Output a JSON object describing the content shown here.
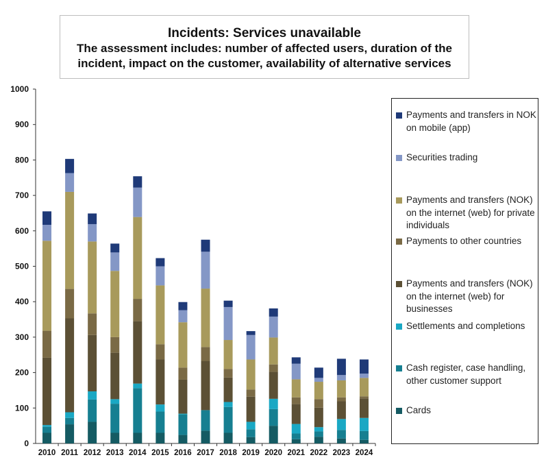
{
  "chart_data": {
    "type": "bar",
    "stacked": true,
    "title": "Incidents: Services unavailable",
    "subtitle": "The assessment includes: number of affected users, duration of the incident, impact on the customer, availability of alternative services",
    "xlabel": "",
    "ylabel": "",
    "ylim": [
      0,
      1000
    ],
    "yticks": [
      0,
      100,
      200,
      300,
      400,
      500,
      600,
      700,
      800,
      900,
      1000
    ],
    "grid": false,
    "legend": "right",
    "categories": [
      "2010",
      "2011",
      "2012",
      "2013",
      "2014",
      "2015",
      "2016",
      "2017",
      "2018",
      "2019",
      "2020",
      "2021",
      "2022",
      "2023",
      "2024"
    ],
    "series": [
      {
        "name": "Cards",
        "color": "#155b63",
        "values": [
          30,
          54,
          61,
          30,
          30,
          30,
          24,
          36,
          30,
          18,
          50,
          12,
          19,
          14,
          10
        ]
      },
      {
        "name": "Cash register, case handling, other customer support",
        "color": "#167f91",
        "values": [
          17,
          18,
          63,
          82,
          126,
          60,
          58,
          58,
          73,
          22,
          47,
          16,
          15,
          24,
          25
        ]
      },
      {
        "name": "Settlements and completions",
        "color": "#1aa8c4",
        "values": [
          5,
          16,
          23,
          13,
          13,
          20,
          2,
          0,
          14,
          21,
          29,
          27,
          12,
          31,
          37
        ]
      },
      {
        "name": "Payments and transfers (NOK) on the internet (web) for businesses",
        "color": "#5c5035",
        "values": [
          190,
          265,
          159,
          131,
          176,
          127,
          96,
          139,
          69,
          71,
          76,
          56,
          55,
          50,
          55
        ]
      },
      {
        "name": "Payments to other countries",
        "color": "#7a6a45",
        "values": [
          76,
          83,
          61,
          44,
          63,
          43,
          34,
          39,
          24,
          20,
          21,
          19,
          24,
          11,
          6
        ]
      },
      {
        "name": "Payments and transfers (NOK) on the internet (web) for private individuals",
        "color": "#a89a5c",
        "values": [
          254,
          274,
          203,
          187,
          231,
          166,
          128,
          165,
          82,
          85,
          76,
          51,
          49,
          48,
          52
        ]
      },
      {
        "name": "Securities trading",
        "color": "#8497c6",
        "values": [
          45,
          53,
          49,
          52,
          83,
          54,
          34,
          104,
          93,
          69,
          59,
          44,
          11,
          15,
          12
        ]
      },
      {
        "name": "Payments and transfers in NOK on mobile (app)",
        "color": "#1f3a78",
        "values": [
          38,
          40,
          30,
          25,
          32,
          23,
          23,
          34,
          18,
          11,
          23,
          18,
          29,
          46,
          40
        ]
      }
    ]
  }
}
